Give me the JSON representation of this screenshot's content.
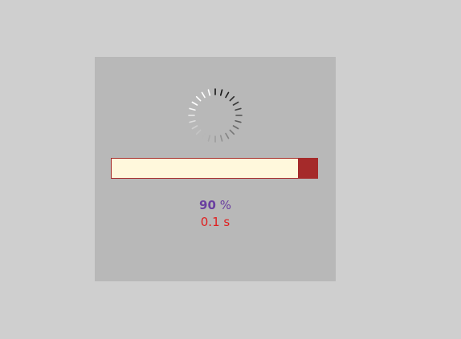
{
  "progress": {
    "percent_value": "90",
    "percent_unit": "%",
    "fraction_complete": 0.9,
    "elapsed": "0.1 s"
  },
  "spinner": {
    "icon": "loading-spinner-icon"
  },
  "colors": {
    "background": "#cfcfcf",
    "panel": "#b8b8b8",
    "bar_fill": "#a52a2a",
    "bar_track": "#fff8dc",
    "percent_text": "#6a3fa0",
    "time_text": "#e02020"
  }
}
